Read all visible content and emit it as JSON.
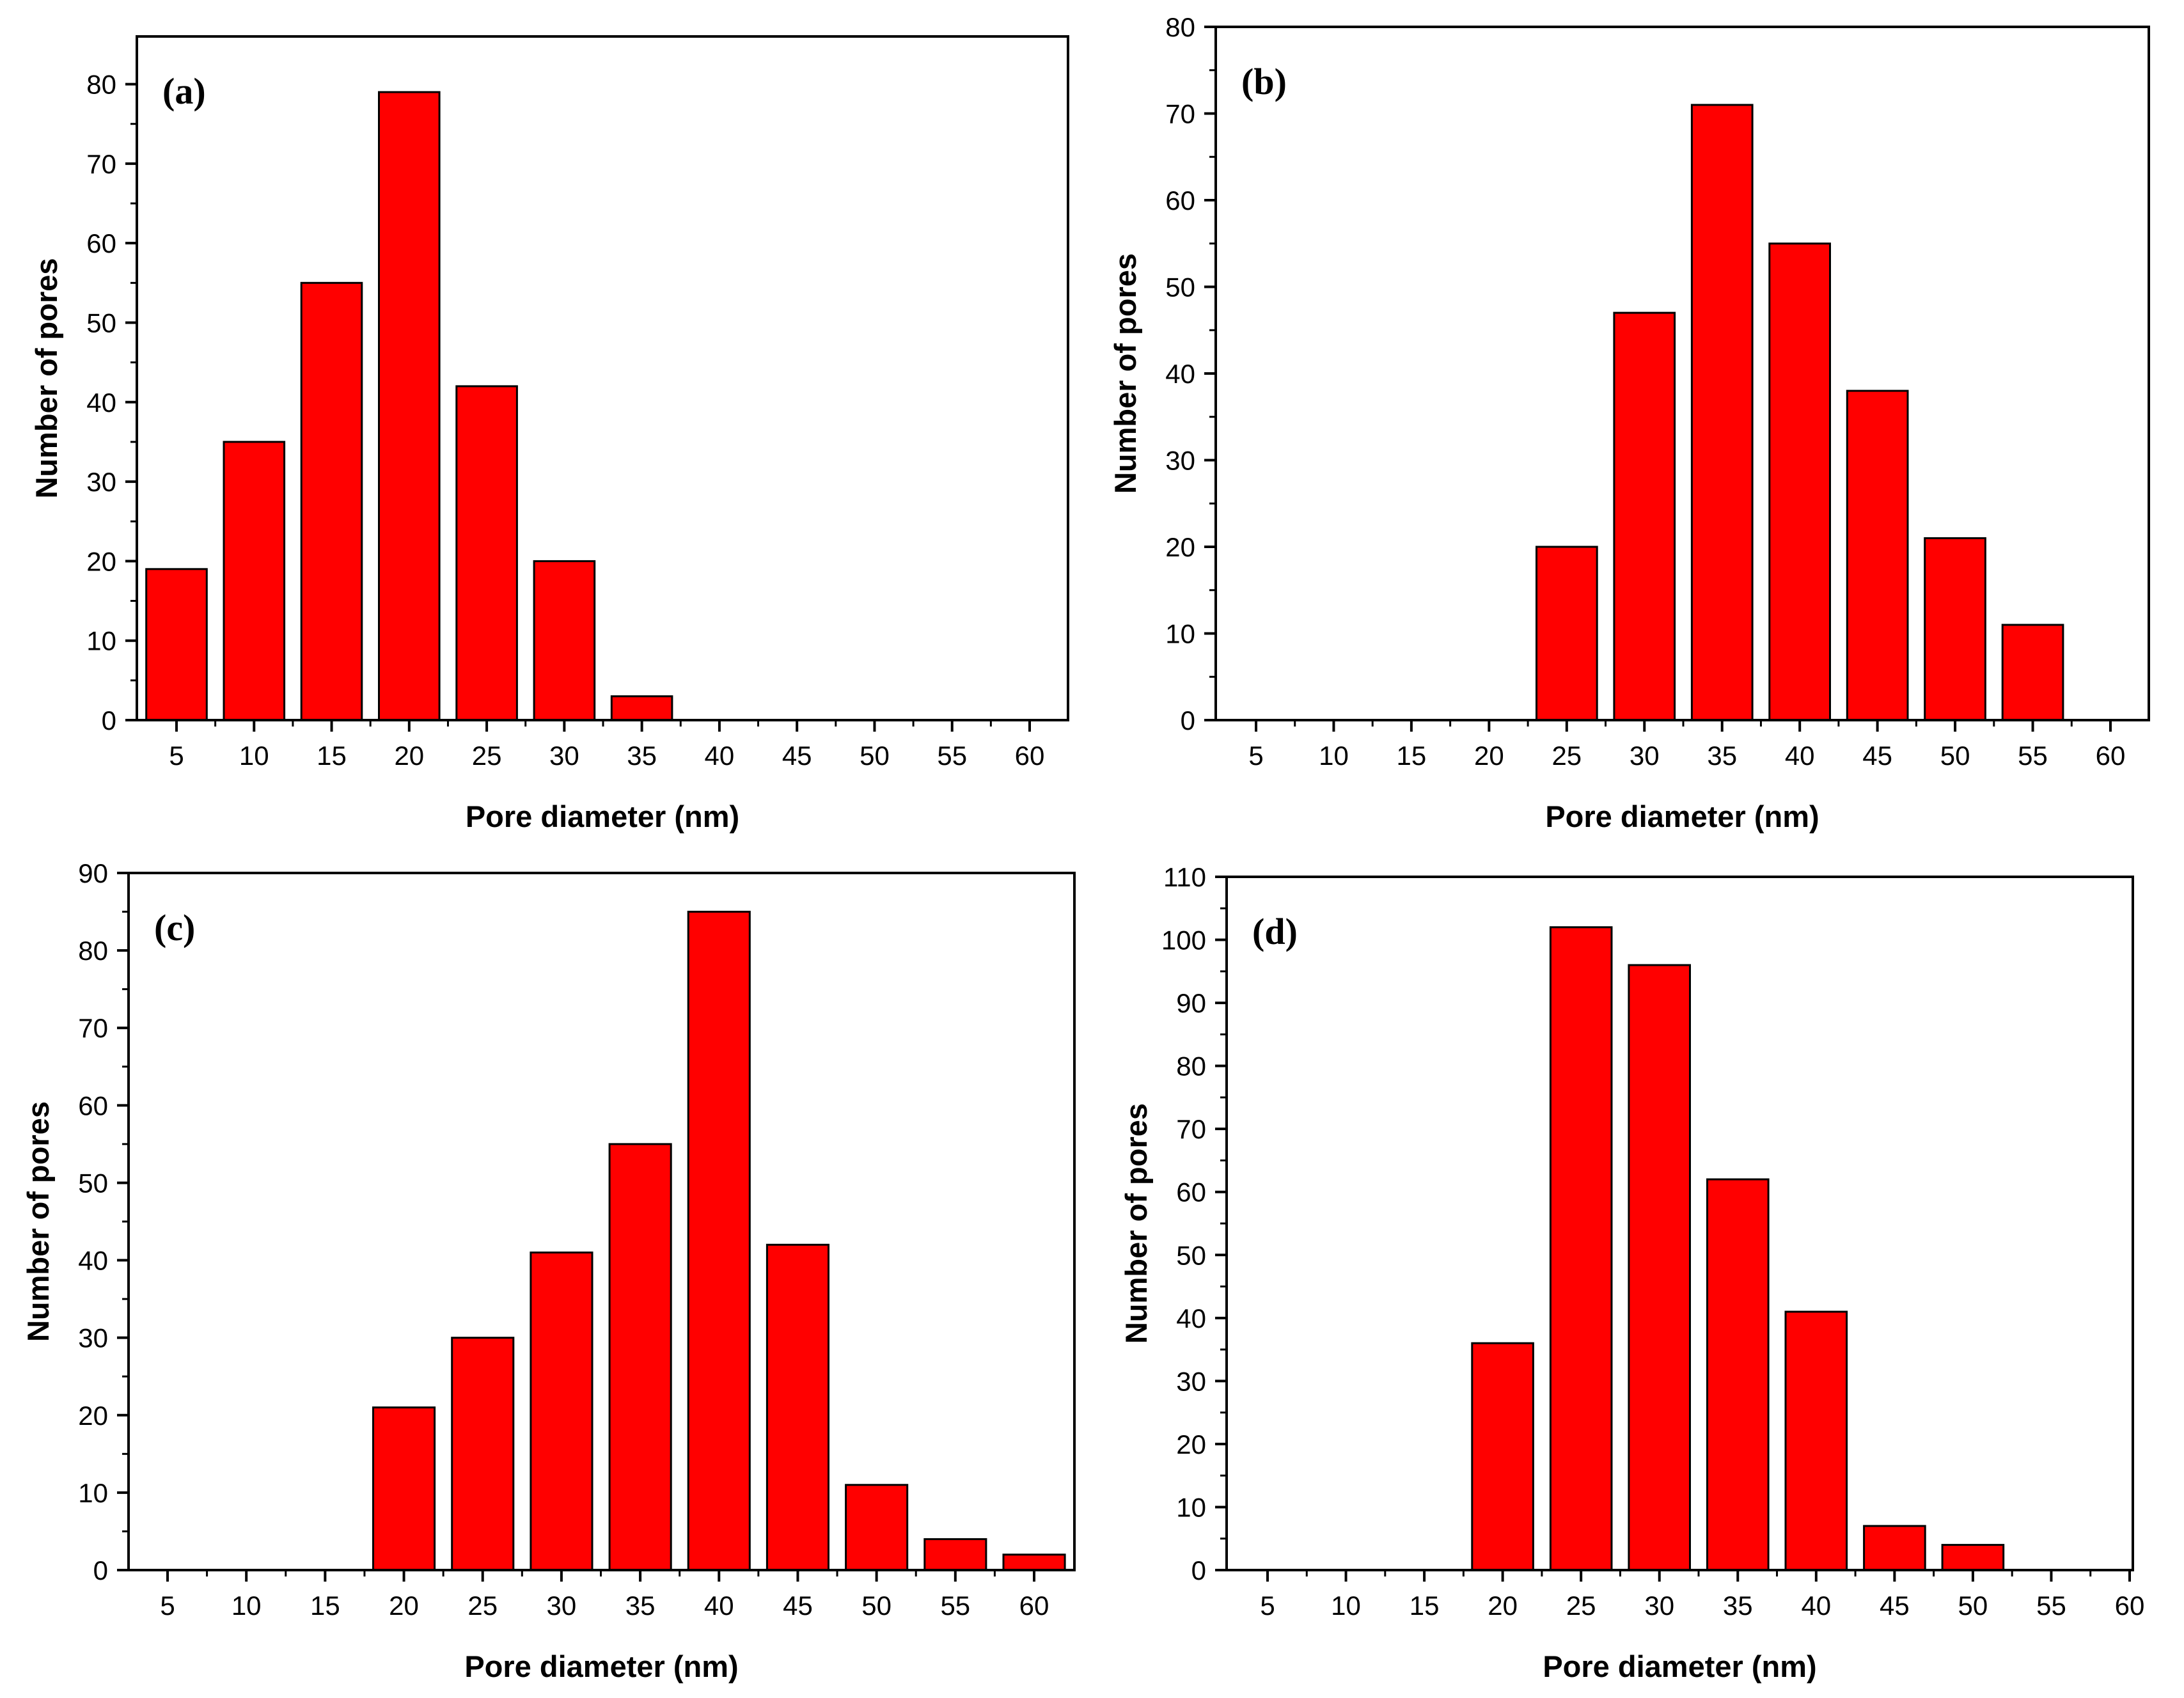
{
  "chart_data": [
    {
      "type": "bar",
      "panel_label": "(a)",
      "xlabel": "Pore diameter (nm)",
      "ylabel": "Number of pores",
      "categories": [
        5,
        10,
        15,
        20,
        25,
        30,
        35,
        40,
        45,
        50,
        55,
        60
      ],
      "values": [
        19,
        35,
        55,
        79,
        42,
        20,
        3,
        0,
        0,
        0,
        0,
        0
      ],
      "ylim": [
        0,
        86
      ],
      "yticks": [
        0,
        10,
        20,
        30,
        40,
        50,
        60,
        70,
        80
      ],
      "grid": false
    },
    {
      "type": "bar",
      "panel_label": "(b)",
      "xlabel": "Pore diameter (nm)",
      "ylabel": "Number of pores",
      "categories": [
        5,
        10,
        15,
        20,
        25,
        30,
        35,
        40,
        45,
        50,
        55,
        60
      ],
      "values": [
        0,
        0,
        0,
        0,
        20,
        47,
        71,
        55,
        38,
        21,
        11,
        0
      ],
      "ylim": [
        0,
        80
      ],
      "yticks": [
        0,
        10,
        20,
        30,
        40,
        50,
        60,
        70,
        80
      ],
      "grid": false
    },
    {
      "type": "bar",
      "panel_label": "(c)",
      "xlabel": "Pore diameter (nm)",
      "ylabel": "Number of pores",
      "categories": [
        5,
        10,
        15,
        20,
        25,
        30,
        35,
        40,
        45,
        50,
        55,
        60
      ],
      "values": [
        0,
        0,
        0,
        21,
        30,
        41,
        55,
        85,
        42,
        11,
        4,
        2
      ],
      "ylim": [
        0,
        90
      ],
      "yticks": [
        0,
        10,
        20,
        30,
        40,
        50,
        60,
        70,
        80,
        90
      ],
      "grid": false
    },
    {
      "type": "bar",
      "panel_label": "(d)",
      "xlabel": "Pore diameter (nm)",
      "ylabel": "Number of pores",
      "categories": [
        5,
        10,
        15,
        20,
        25,
        30,
        35,
        40,
        45,
        50,
        55,
        60
      ],
      "values": [
        0,
        0,
        0,
        36,
        102,
        96,
        62,
        41,
        7,
        4,
        0,
        0
      ],
      "ylim": [
        0,
        110
      ],
      "yticks": [
        0,
        10,
        20,
        30,
        40,
        50,
        60,
        70,
        80,
        90,
        100,
        110
      ],
      "grid": false
    }
  ],
  "colors": {
    "bar_fill": "#ff0000",
    "bar_edge": "#000000",
    "axis": "#000000"
  }
}
